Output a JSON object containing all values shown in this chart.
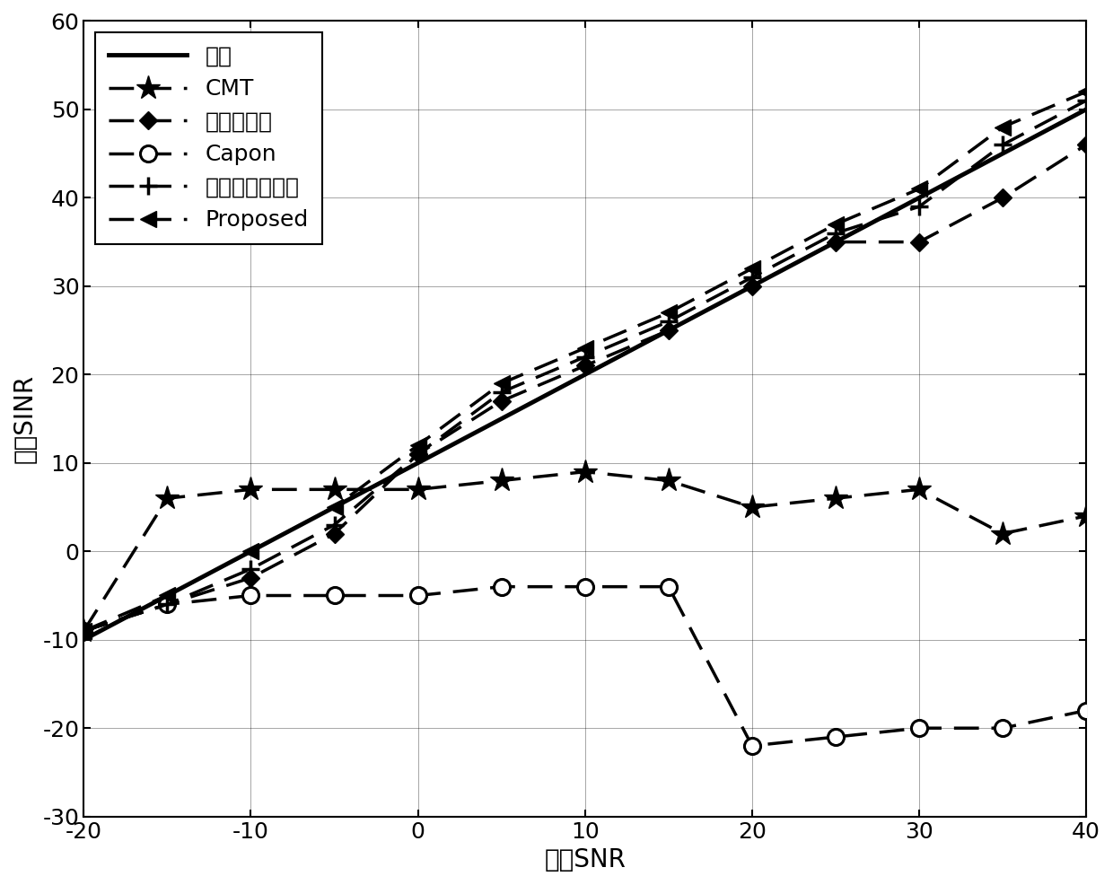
{
  "x_snr": [
    -20,
    -15,
    -10,
    -5,
    0,
    5,
    10,
    15,
    20,
    25,
    30,
    35,
    40
  ],
  "y_ideal": [
    -10,
    -5,
    0,
    5,
    10,
    15,
    20,
    25,
    30,
    35,
    40,
    45,
    50
  ],
  "y_cmt": [
    -9,
    6,
    7,
    7,
    7,
    8,
    9,
    8,
    5,
    6,
    7,
    2,
    4
  ],
  "y_multi": [
    -9,
    -6,
    -3,
    2,
    11,
    17,
    21,
    25,
    30,
    35,
    35,
    40,
    46
  ],
  "y_capon": [
    -9,
    -6,
    -5,
    -5,
    -5,
    -4,
    -4,
    -4,
    -22,
    -21,
    -20,
    -20,
    -18
  ],
  "y_cov": [
    -9,
    -6,
    -2,
    3,
    11,
    18,
    22,
    26,
    31,
    36,
    39,
    46,
    51
  ],
  "y_proposed": [
    -9,
    -5,
    0,
    5,
    12,
    19,
    23,
    27,
    32,
    37,
    41,
    48,
    52
  ],
  "xlim": [
    -20,
    40
  ],
  "ylim": [
    -30,
    60
  ],
  "xticks": [
    -20,
    -10,
    0,
    10,
    20,
    30,
    40
  ],
  "yticks": [
    -30,
    -20,
    -10,
    0,
    10,
    20,
    30,
    40,
    50,
    60
  ],
  "xlabel": "输入SNR",
  "ylabel": "输函SINR",
  "legend_labels": [
    "理想",
    "CMT",
    "多参数约束",
    "Capon",
    "协方差矩阵重构",
    "Proposed"
  ],
  "background_color": "#ffffff",
  "lw_solid": 3.5,
  "lw_dashed": 2.5,
  "label_fontsize": 20,
  "tick_fontsize": 18,
  "legend_fontsize": 18
}
